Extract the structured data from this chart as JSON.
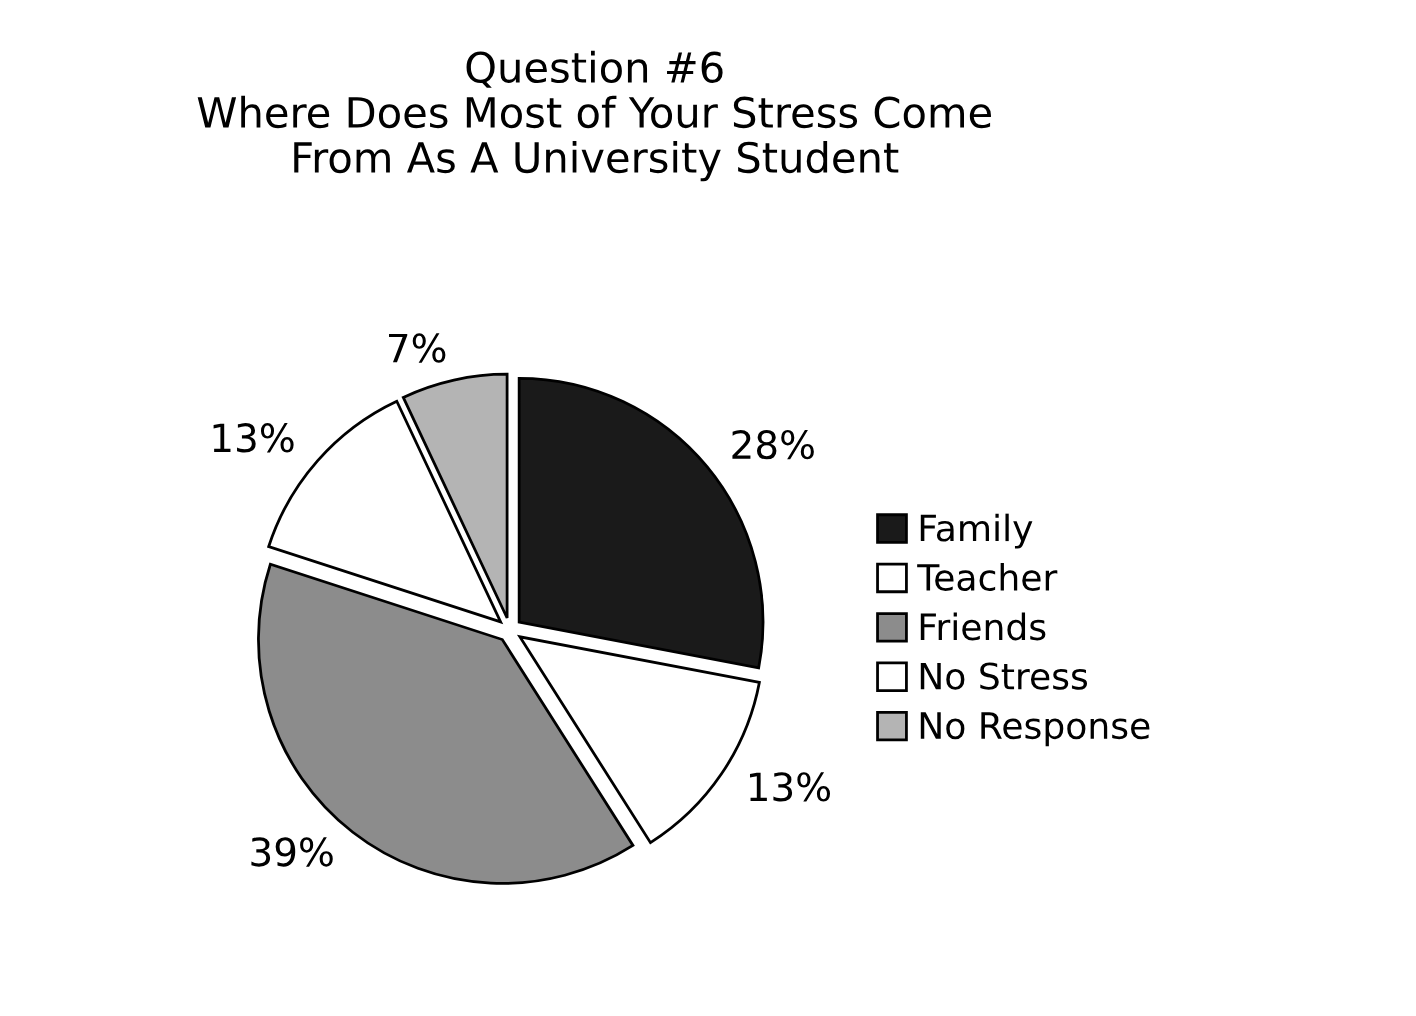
{
  "chart_data": {
    "type": "pie",
    "title": "Question #6\nWhere Does Most of Your Stress Come\nFrom As A University Student",
    "categories": [
      "Family",
      "Teacher",
      "Friends",
      "No Stress",
      "No Response"
    ],
    "values": [
      28,
      13,
      39,
      13,
      7
    ],
    "colors": [
      "#1a1a1a",
      "#ffffff",
      "#8c8c8c",
      "#ffffff",
      "#b4b4b4"
    ],
    "value_labels": [
      "28%",
      "13%",
      "39%",
      "13%",
      "7%"
    ],
    "legend": "right"
  }
}
